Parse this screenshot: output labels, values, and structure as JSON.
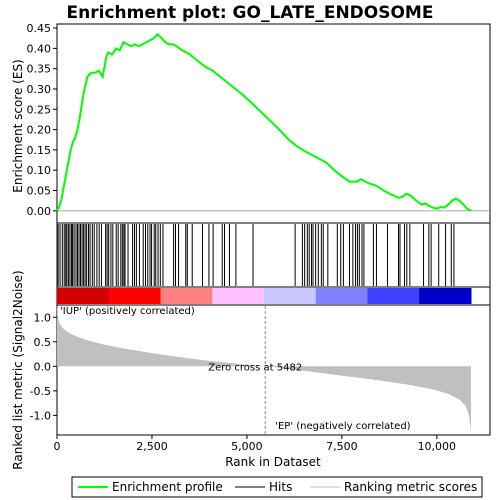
{
  "chart_data": {
    "type": "line",
    "title": "Enrichment plot: GO_LATE_ENDOSOME",
    "panels": {
      "enrichment": {
        "ylabel": "Enrichment score (ES)",
        "ylim": [
          -0.03,
          0.46
        ],
        "yticks": [
          0.0,
          0.05,
          0.1,
          0.15,
          0.2,
          0.25,
          0.3,
          0.35,
          0.4,
          0.45
        ],
        "ytick_labels": [
          "0.00",
          "0.05",
          "0.10",
          "0.15",
          "0.20",
          "0.25",
          "0.30",
          "0.35",
          "0.40",
          "0.45"
        ],
        "series": [
          {
            "name": "Enrichment profile",
            "color": "#00ff00",
            "x": [
              0,
              60,
              120,
              180,
              240,
              300,
              360,
              420,
              480,
              540,
              600,
              650,
              700,
              750,
              800,
              900,
              1000,
              1100,
              1200,
              1300,
              1350,
              1450,
              1550,
              1650,
              1750,
              1850,
              1950,
              2050,
              2150,
              2250,
              2350,
              2450,
              2550,
              2650,
              2750,
              2850,
              2950,
              3050,
              3150,
              3300,
              3500,
              3700,
              3900,
              4100,
              4300,
              4500,
              4700,
              4900,
              5100,
              5300,
              5500,
              5700,
              5900,
              6100,
              6300,
              6500,
              6700,
              6900,
              7100,
              7300,
              7500,
              7700,
              7900,
              8000,
              8200,
              8400,
              8600,
              8800,
              9000,
              9100,
              9200,
              9300,
              9400,
              9500,
              9600,
              9700,
              9800,
              9900,
              10000,
              10100,
              10200,
              10300,
              10400,
              10500,
              10600,
              10700,
              10800,
              10900
            ],
            "y": [
              0.0,
              0.01,
              0.03,
              0.06,
              0.09,
              0.12,
              0.15,
              0.17,
              0.18,
              0.2,
              0.23,
              0.26,
              0.29,
              0.31,
              0.33,
              0.34,
              0.34,
              0.345,
              0.33,
              0.38,
              0.39,
              0.385,
              0.4,
              0.395,
              0.415,
              0.41,
              0.405,
              0.41,
              0.405,
              0.41,
              0.415,
              0.42,
              0.425,
              0.435,
              0.425,
              0.415,
              0.41,
              0.41,
              0.405,
              0.395,
              0.385,
              0.37,
              0.355,
              0.345,
              0.33,
              0.315,
              0.3,
              0.285,
              0.268,
              0.25,
              0.232,
              0.214,
              0.195,
              0.175,
              0.16,
              0.148,
              0.138,
              0.128,
              0.118,
              0.1,
              0.085,
              0.072,
              0.072,
              0.078,
              0.068,
              0.062,
              0.05,
              0.04,
              0.032,
              0.035,
              0.042,
              0.038,
              0.03,
              0.022,
              0.015,
              0.018,
              0.012,
              0.008,
              0.005,
              0.01,
              0.008,
              0.015,
              0.025,
              0.03,
              0.025,
              0.015,
              0.005,
              0.0
            ]
          }
        ]
      },
      "hits": {
        "positions": [
          30,
          80,
          140,
          190,
          230,
          260,
          300,
          340,
          380,
          410,
          450,
          500,
          540,
          580,
          620,
          660,
          700,
          740,
          780,
          830,
          870,
          930,
          980,
          1050,
          1110,
          1170,
          1280,
          1320,
          1360,
          1420,
          1470,
          1560,
          1610,
          1680,
          1720,
          1760,
          1790,
          1870,
          1990,
          2040,
          2090,
          2170,
          2270,
          2330,
          2390,
          2450,
          2490,
          2560,
          2600,
          2660,
          2720,
          2790,
          3070,
          3120,
          3200,
          3390,
          3430,
          3560,
          3830,
          4000,
          4110,
          4350,
          4410,
          4540,
          4710,
          5160,
          6270,
          6460,
          6520,
          6590,
          6640,
          6700,
          6740,
          6810,
          6880,
          6960,
          7010,
          7130,
          7380,
          7470,
          7540,
          7700,
          7790,
          7860,
          7910,
          7960,
          8030,
          8080,
          8330,
          8410,
          8700,
          8990,
          9030,
          9150,
          9210,
          9290,
          9650,
          9790,
          9850,
          10050,
          10230,
          10380,
          10450
        ],
        "strip_colors": [
          "#d40000",
          "#ff0000",
          "#ff8080",
          "#ffc0ff",
          "#c8c8ff",
          "#8080ff",
          "#4040ff",
          "#0000c8"
        ]
      },
      "metric": {
        "ylabel": "Ranked list metric (Signal2Noise)",
        "xlabel": "Rank in Dataset",
        "ylim": [
          -1.4,
          1.25
        ],
        "yticks": [
          -1.0,
          -0.5,
          0.0,
          0.5,
          1.0
        ],
        "ytick_labels": [
          "-1.0",
          "-0.5",
          "0.0",
          "0.5",
          "1.0"
        ],
        "fill_color": "#c0c0c0",
        "x": [
          0,
          50,
          150,
          300,
          500,
          800,
          1200,
          1800,
          2500,
          3200,
          4000,
          4800,
          5482,
          6200,
          7000,
          7800,
          8600,
          9300,
          9900,
          10300,
          10600,
          10750,
          10850,
          10900
        ],
        "y": [
          1.25,
          0.9,
          0.78,
          0.69,
          0.61,
          0.53,
          0.45,
          0.36,
          0.27,
          0.19,
          0.11,
          0.05,
          0.0,
          -0.06,
          -0.14,
          -0.22,
          -0.3,
          -0.38,
          -0.47,
          -0.56,
          -0.68,
          -0.8,
          -1.0,
          -1.35
        ]
      }
    },
    "x_axis": {
      "xlim": [
        0,
        11400
      ],
      "xticks": [
        0,
        2500,
        5000,
        7500,
        10000
      ],
      "xtick_labels": [
        "0",
        "2,500",
        "5,000",
        "7,500",
        "10,000"
      ]
    },
    "annotations": {
      "zero_cross": "Zero cross at 5482",
      "zero_cross_rank": 5482,
      "positive_label": "'IUP' (positively correlated)",
      "negative_label": "'EP' (negatively correlated)",
      "positive_color": "#cc0000",
      "negative_color": "#0000cc"
    },
    "legend": {
      "placement": "bottom",
      "entries": [
        {
          "name": "Enrichment profile",
          "color": "#00ff00"
        },
        {
          "name": "Hits",
          "color": "#000000"
        },
        {
          "name": "Ranking metric scores",
          "color": "#c0c0c0"
        }
      ]
    }
  }
}
